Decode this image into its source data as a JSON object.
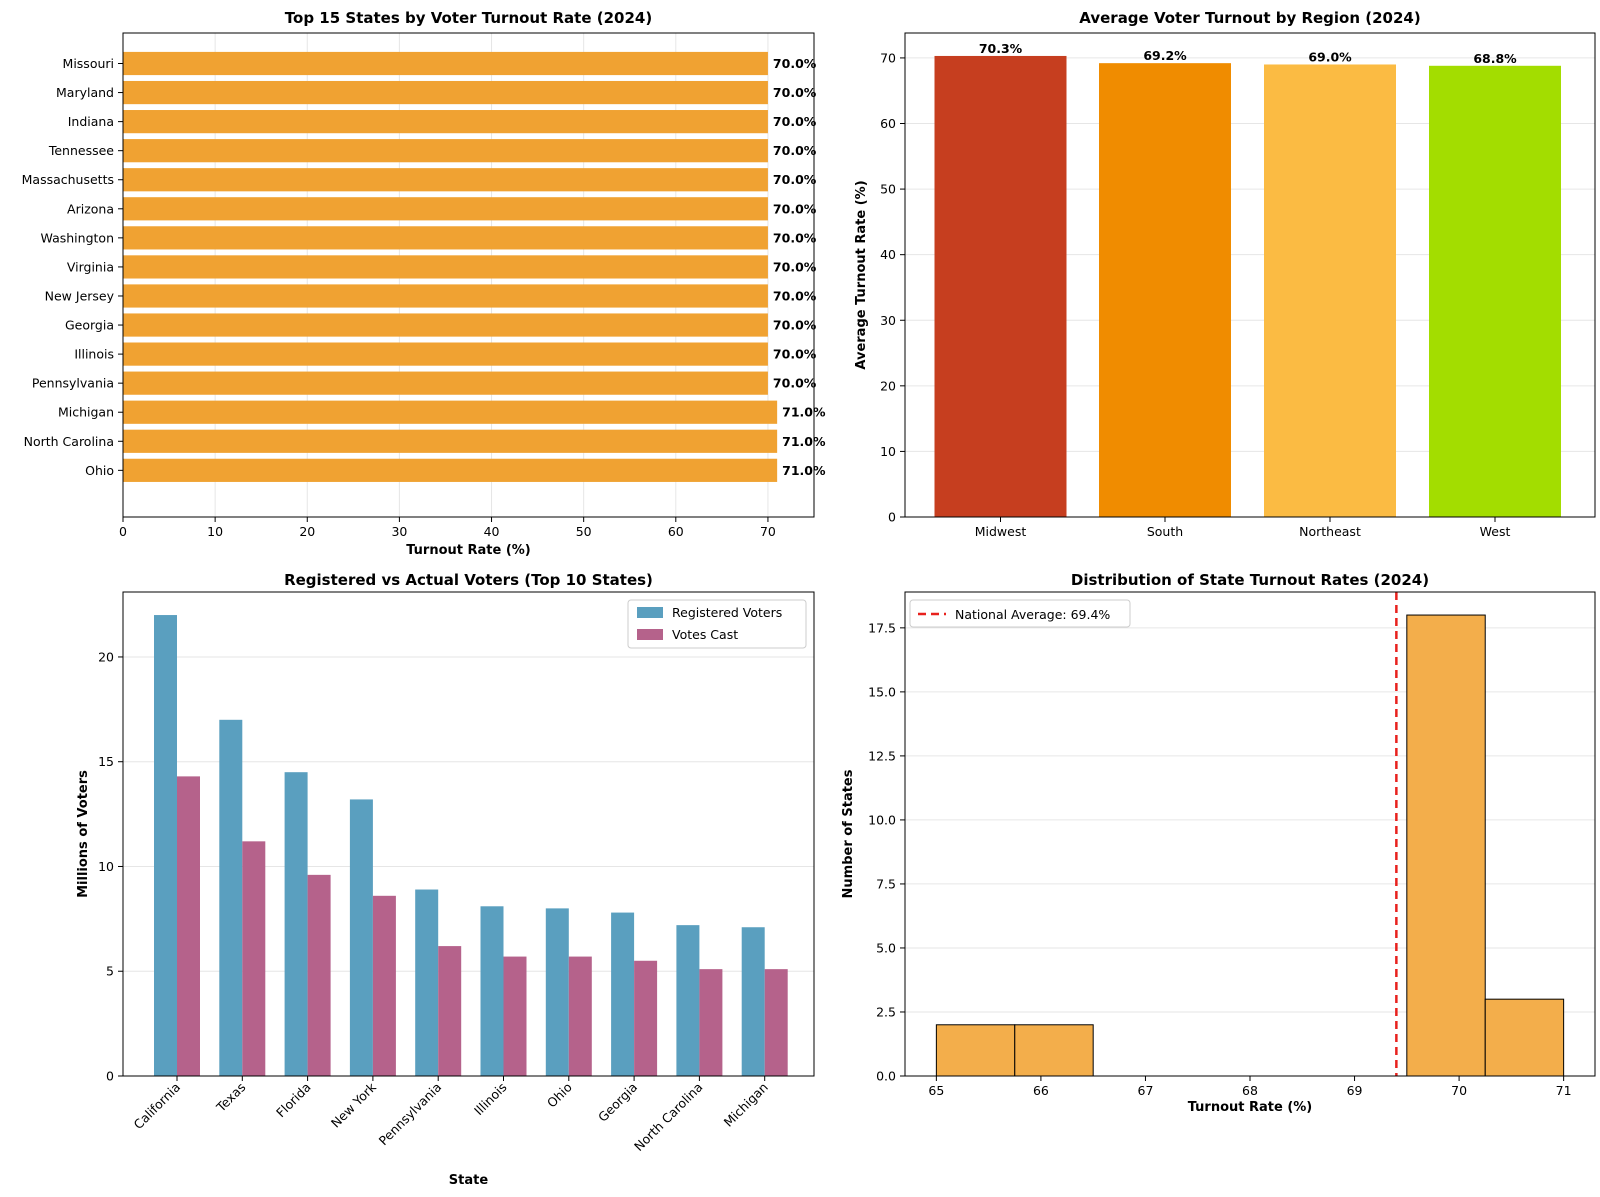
{
  "colors": {
    "orange_bar": "#f0a232",
    "grid": "#e6e6e6",
    "region_bars": [
      "#c63e1f",
      "#f08c00",
      "#fbbb43",
      "#a3dd00"
    ],
    "registered": "#5a9fbf",
    "votes_cast": "#b5628b",
    "hist_bar": "#f3ae4b",
    "avg_line": "#e8211d"
  },
  "chart_data": [
    {
      "type": "bar",
      "orientation": "horizontal",
      "title": "Top 15 States by Voter Turnout Rate (2024)",
      "xlabel": "Turnout Rate (%)",
      "ylabel": "",
      "xlim": [
        0,
        75
      ],
      "xticks": [
        0,
        10,
        20,
        30,
        40,
        50,
        60,
        70
      ],
      "categories": [
        "Missouri",
        "Maryland",
        "Indiana",
        "Tennessee",
        "Massachusetts",
        "Arizona",
        "Washington",
        "Virginia",
        "New Jersey",
        "Georgia",
        "Illinois",
        "Pennsylvania",
        "Michigan",
        "North Carolina",
        "Ohio"
      ],
      "values": [
        70.0,
        70.0,
        70.0,
        70.0,
        70.0,
        70.0,
        70.0,
        70.0,
        70.0,
        70.0,
        70.0,
        70.0,
        71.0,
        71.0,
        71.0
      ],
      "data_labels": [
        "70.0%",
        "70.0%",
        "70.0%",
        "70.0%",
        "70.0%",
        "70.0%",
        "70.0%",
        "70.0%",
        "70.0%",
        "70.0%",
        "70.0%",
        "70.0%",
        "71.0%",
        "71.0%",
        "71.0%"
      ],
      "grid": true
    },
    {
      "type": "bar",
      "title": "Average Voter Turnout by Region (2024)",
      "xlabel": "",
      "ylabel": "Average Turnout Rate (%)",
      "ylim": [
        0,
        73.8
      ],
      "yticks": [
        0,
        10,
        20,
        30,
        40,
        50,
        60,
        70
      ],
      "categories": [
        "Midwest",
        "South",
        "Northeast",
        "West"
      ],
      "values": [
        70.3,
        69.2,
        69.0,
        68.8
      ],
      "data_labels": [
        "70.3%",
        "69.2%",
        "69.0%",
        "68.8%"
      ],
      "grid": true
    },
    {
      "type": "bar",
      "title": "Registered vs Actual Voters (Top 10 States)",
      "xlabel": "State",
      "ylabel": "Millions of Voters",
      "ylim": [
        0,
        23.1
      ],
      "yticks": [
        0,
        5,
        10,
        15,
        20
      ],
      "categories": [
        "California",
        "Texas",
        "Florida",
        "New York",
        "Pennsylvania",
        "Illinois",
        "Ohio",
        "Georgia",
        "North Carolina",
        "Michigan"
      ],
      "series": [
        {
          "name": "Registered Voters",
          "values": [
            22.0,
            17.0,
            14.5,
            13.2,
            8.9,
            8.1,
            8.0,
            7.8,
            7.2,
            7.1
          ]
        },
        {
          "name": "Votes Cast",
          "values": [
            14.3,
            11.2,
            9.6,
            8.6,
            6.2,
            5.7,
            5.7,
            5.5,
            5.1,
            5.1
          ]
        }
      ],
      "legend": "top-right",
      "grid": true
    },
    {
      "type": "histogram",
      "title": "Distribution of State Turnout Rates (2024)",
      "xlabel": "Turnout Rate (%)",
      "ylabel": "Number of States",
      "xlim": [
        64.7,
        71.3
      ],
      "ylim": [
        0,
        18.9
      ],
      "xticks": [
        65,
        66,
        67,
        68,
        69,
        70,
        71
      ],
      "yticks": [
        0.0,
        2.5,
        5.0,
        7.5,
        10.0,
        12.5,
        15.0,
        17.5
      ],
      "ytick_labels": [
        "0.0",
        "2.5",
        "5.0",
        "7.5",
        "10.0",
        "12.5",
        "15.0",
        "17.5"
      ],
      "bin_edges": [
        65.0,
        65.75,
        66.5,
        67.25,
        68.0,
        68.75,
        69.5,
        70.25,
        71.0
      ],
      "counts": [
        2,
        2,
        0,
        0,
        0,
        0,
        18,
        3
      ],
      "reference_line": {
        "label": "National Average: 69.4%",
        "value": 69.4
      },
      "legend": "top-left",
      "grid": true
    }
  ]
}
